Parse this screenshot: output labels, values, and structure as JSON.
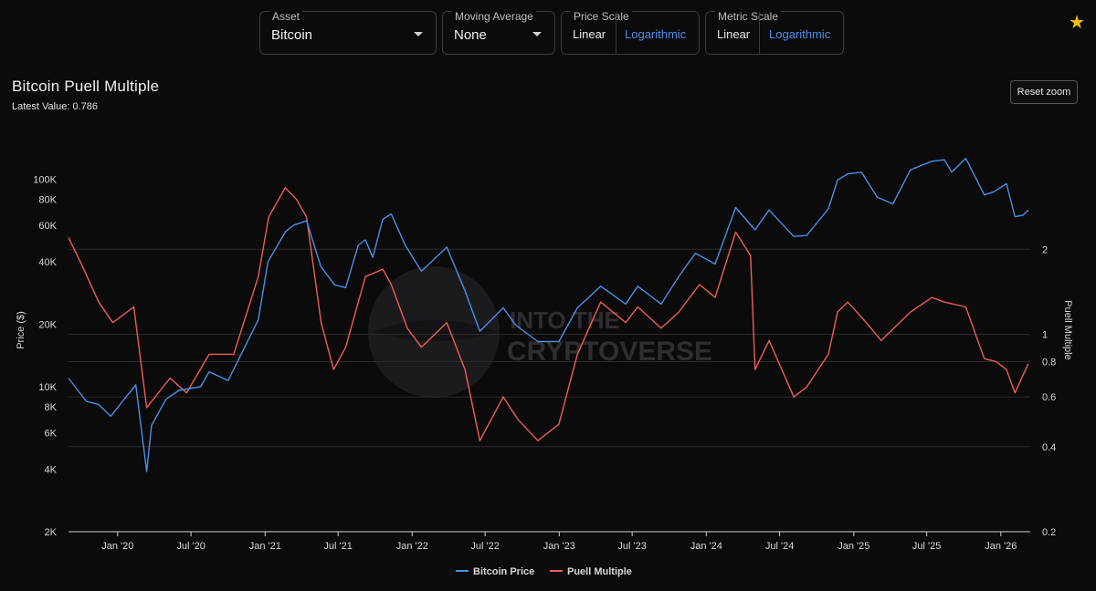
{
  "controls": {
    "asset": {
      "label": "Asset",
      "value": "Bitcoin"
    },
    "moving_average": {
      "label": "Moving Average",
      "value": "None"
    },
    "price_scale": {
      "label": "Price Scale",
      "options": [
        "Linear",
        "Logarithmic"
      ],
      "selected": "Logarithmic"
    },
    "metric_scale": {
      "label": "Metric Scale",
      "options": [
        "Linear",
        "Logarithmic"
      ],
      "selected": "Logarithmic"
    }
  },
  "favorite_icon": "star-icon",
  "reset_zoom_label": "Reset zoom",
  "watermark": {
    "line1": "INTO THE",
    "line2": "CRYPTOVERSE"
  },
  "colors": {
    "price": "#4a8fe7",
    "metric": "#ee5e54",
    "background": "#0b0b0c",
    "grid": "#2a2a2e"
  },
  "chart_data": {
    "type": "line",
    "title": "Bitcoin Puell Multiple",
    "subtitle": "Latest Value: 0.786",
    "ylabel_left": "Price ($)",
    "ylabel_right": "Puell Multiple",
    "x_range": [
      "2019-09-01",
      "2026-03-15"
    ],
    "x_ticks": [
      "Jan '20",
      "Jul '20",
      "Jan '21",
      "Jul '21",
      "Jan '22",
      "Jul '22",
      "Jan '23",
      "Jul '23",
      "Jan '24",
      "Jul '24",
      "Jan '25",
      "Jul '25",
      "Jan '26"
    ],
    "x_tick_dates": [
      "2020-01-01",
      "2020-07-01",
      "2021-01-01",
      "2021-07-01",
      "2022-01-01",
      "2022-07-01",
      "2023-01-01",
      "2023-07-01",
      "2024-01-01",
      "2024-07-01",
      "2025-01-01",
      "2025-07-01",
      "2026-01-01"
    ],
    "y_left": {
      "scale": "log",
      "range": [
        2000,
        160000
      ],
      "ticks": [
        2000,
        4000,
        6000,
        8000,
        10000,
        20000,
        40000,
        60000,
        80000,
        100000
      ],
      "tick_labels": [
        "2K",
        "4K",
        "6K",
        "8K",
        "10K",
        "20K",
        "40K",
        "60K",
        "80K",
        "100K"
      ]
    },
    "y_right": {
      "scale": "log",
      "range": [
        0.2,
        5.0
      ],
      "ticks": [
        0.2,
        0.4,
        0.6,
        0.8,
        1,
        2
      ],
      "tick_labels": [
        "0.2",
        "0.4",
        "0.6",
        "0.8",
        "1",
        "2"
      ]
    },
    "legend": {
      "position": "bottom-center",
      "items": [
        "Bitcoin Price",
        "Puell Multiple"
      ]
    },
    "grid": true,
    "series": [
      {
        "name": "Bitcoin Price",
        "axis": "left",
        "color": "#4a8fe7",
        "points": [
          [
            "2019-09-01",
            11000
          ],
          [
            "2019-10-15",
            8500
          ],
          [
            "2019-11-15",
            8200
          ],
          [
            "2019-12-15",
            7200
          ],
          [
            "2020-01-15",
            8600
          ],
          [
            "2020-02-15",
            10200
          ],
          [
            "2020-03-13",
            3900
          ],
          [
            "2020-03-25",
            6500
          ],
          [
            "2020-04-30",
            8700
          ],
          [
            "2020-06-01",
            9600
          ],
          [
            "2020-07-25",
            10000
          ],
          [
            "2020-08-15",
            11800
          ],
          [
            "2020-10-01",
            10700
          ],
          [
            "2020-11-15",
            16000
          ],
          [
            "2020-12-15",
            21000
          ],
          [
            "2021-01-08",
            40000
          ],
          [
            "2021-02-21",
            56000
          ],
          [
            "2021-03-13",
            60000
          ],
          [
            "2021-04-14",
            63000
          ],
          [
            "2021-05-19",
            38000
          ],
          [
            "2021-06-22",
            31000
          ],
          [
            "2021-07-20",
            30000
          ],
          [
            "2021-08-20",
            48000
          ],
          [
            "2021-09-07",
            51000
          ],
          [
            "2021-09-25",
            42000
          ],
          [
            "2021-10-20",
            64000
          ],
          [
            "2021-11-10",
            68000
          ],
          [
            "2021-12-15",
            48000
          ],
          [
            "2022-01-24",
            36000
          ],
          [
            "2022-03-28",
            47000
          ],
          [
            "2022-05-12",
            29000
          ],
          [
            "2022-06-18",
            18500
          ],
          [
            "2022-08-15",
            24000
          ],
          [
            "2022-09-15",
            19800
          ],
          [
            "2022-11-09",
            16500
          ],
          [
            "2022-12-31",
            16500
          ],
          [
            "2023-02-15",
            24000
          ],
          [
            "2023-04-14",
            30500
          ],
          [
            "2023-06-15",
            25000
          ],
          [
            "2023-07-15",
            30500
          ],
          [
            "2023-09-11",
            25000
          ],
          [
            "2023-10-25",
            34000
          ],
          [
            "2023-12-05",
            44000
          ],
          [
            "2024-01-23",
            39000
          ],
          [
            "2024-03-14",
            73000
          ],
          [
            "2024-05-01",
            57000
          ],
          [
            "2024-06-05",
            71000
          ],
          [
            "2024-08-05",
            53000
          ],
          [
            "2024-09-06",
            53500
          ],
          [
            "2024-10-30",
            72000
          ],
          [
            "2024-11-22",
            99000
          ],
          [
            "2024-12-17",
            106000
          ],
          [
            "2025-01-20",
            108000
          ],
          [
            "2025-02-28",
            82000
          ],
          [
            "2025-04-08",
            76000
          ],
          [
            "2025-05-22",
            111000
          ],
          [
            "2025-07-14",
            122000
          ],
          [
            "2025-08-14",
            124000
          ],
          [
            "2025-09-01",
            108000
          ],
          [
            "2025-10-06",
            126000
          ],
          [
            "2025-11-21",
            84000
          ],
          [
            "2025-12-15",
            87000
          ],
          [
            "2026-01-15",
            95000
          ],
          [
            "2026-02-05",
            66000
          ],
          [
            "2026-02-25",
            67000
          ],
          [
            "2026-03-10",
            71000
          ]
        ]
      },
      {
        "name": "Puell Multiple",
        "axis": "right",
        "color": "#ee5e54",
        "points": [
          [
            "2019-09-01",
            2.2
          ],
          [
            "2019-10-01",
            1.8
          ],
          [
            "2019-11-15",
            1.3
          ],
          [
            "2019-12-20",
            1.1
          ],
          [
            "2020-02-10",
            1.25
          ],
          [
            "2020-03-13",
            0.55
          ],
          [
            "2020-05-10",
            0.7
          ],
          [
            "2020-06-20",
            0.62
          ],
          [
            "2020-08-15",
            0.85
          ],
          [
            "2020-10-15",
            0.85
          ],
          [
            "2020-12-15",
            1.6
          ],
          [
            "2021-01-10",
            2.6
          ],
          [
            "2021-02-20",
            3.3
          ],
          [
            "2021-03-20",
            3.0
          ],
          [
            "2021-04-14",
            2.6
          ],
          [
            "2021-05-20",
            1.1
          ],
          [
            "2021-06-20",
            0.75
          ],
          [
            "2021-07-20",
            0.9
          ],
          [
            "2021-09-07",
            1.6
          ],
          [
            "2021-10-20",
            1.7
          ],
          [
            "2021-11-10",
            1.5
          ],
          [
            "2021-12-20",
            1.05
          ],
          [
            "2022-01-24",
            0.9
          ],
          [
            "2022-03-28",
            1.1
          ],
          [
            "2022-05-12",
            0.75
          ],
          [
            "2022-06-18",
            0.42
          ],
          [
            "2022-08-15",
            0.6
          ],
          [
            "2022-09-20",
            0.5
          ],
          [
            "2022-11-09",
            0.42
          ],
          [
            "2022-12-31",
            0.48
          ],
          [
            "2023-02-15",
            0.85
          ],
          [
            "2023-04-14",
            1.3
          ],
          [
            "2023-06-15",
            1.1
          ],
          [
            "2023-07-15",
            1.25
          ],
          [
            "2023-09-11",
            1.05
          ],
          [
            "2023-10-25",
            1.2
          ],
          [
            "2023-12-15",
            1.5
          ],
          [
            "2024-01-23",
            1.35
          ],
          [
            "2024-03-14",
            2.3
          ],
          [
            "2024-04-20",
            1.9
          ],
          [
            "2024-05-01",
            0.75
          ],
          [
            "2024-06-05",
            0.95
          ],
          [
            "2024-08-05",
            0.6
          ],
          [
            "2024-09-06",
            0.65
          ],
          [
            "2024-10-30",
            0.85
          ],
          [
            "2024-11-22",
            1.2
          ],
          [
            "2024-12-17",
            1.3
          ],
          [
            "2025-02-01",
            1.1
          ],
          [
            "2025-03-10",
            0.95
          ],
          [
            "2025-05-22",
            1.2
          ],
          [
            "2025-07-14",
            1.35
          ],
          [
            "2025-08-14",
            1.3
          ],
          [
            "2025-10-06",
            1.25
          ],
          [
            "2025-11-21",
            0.82
          ],
          [
            "2025-12-20",
            0.8
          ],
          [
            "2026-01-15",
            0.75
          ],
          [
            "2026-02-05",
            0.62
          ],
          [
            "2026-03-10",
            0.786
          ]
        ]
      }
    ]
  }
}
